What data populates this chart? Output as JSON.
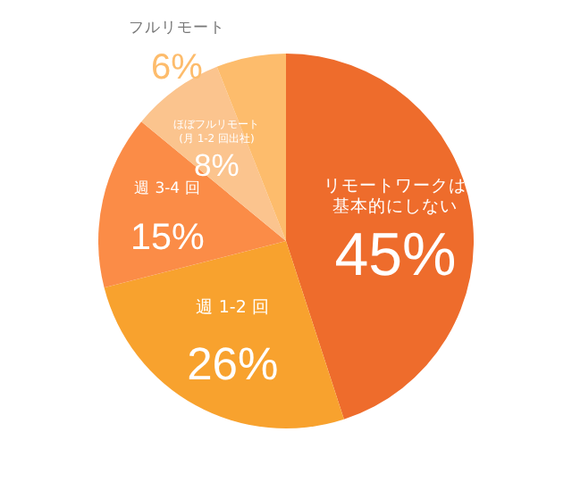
{
  "chart_data": {
    "type": "pie",
    "categories": [
      "リモートワークは基本的にしない",
      "週 1-2 回",
      "週 3-4 回",
      "ほぼフルリモート(月 1-2 回出社)",
      "フルリモート"
    ],
    "values": [
      45,
      26,
      15,
      8,
      6
    ],
    "colors": [
      "#ee6c2c",
      "#f8a22e",
      "#fb8c47",
      "#fbc48e",
      "#fdbc6c"
    ],
    "value_labels": [
      "45%",
      "26%",
      "15%",
      "8%",
      "6%"
    ]
  }
}
